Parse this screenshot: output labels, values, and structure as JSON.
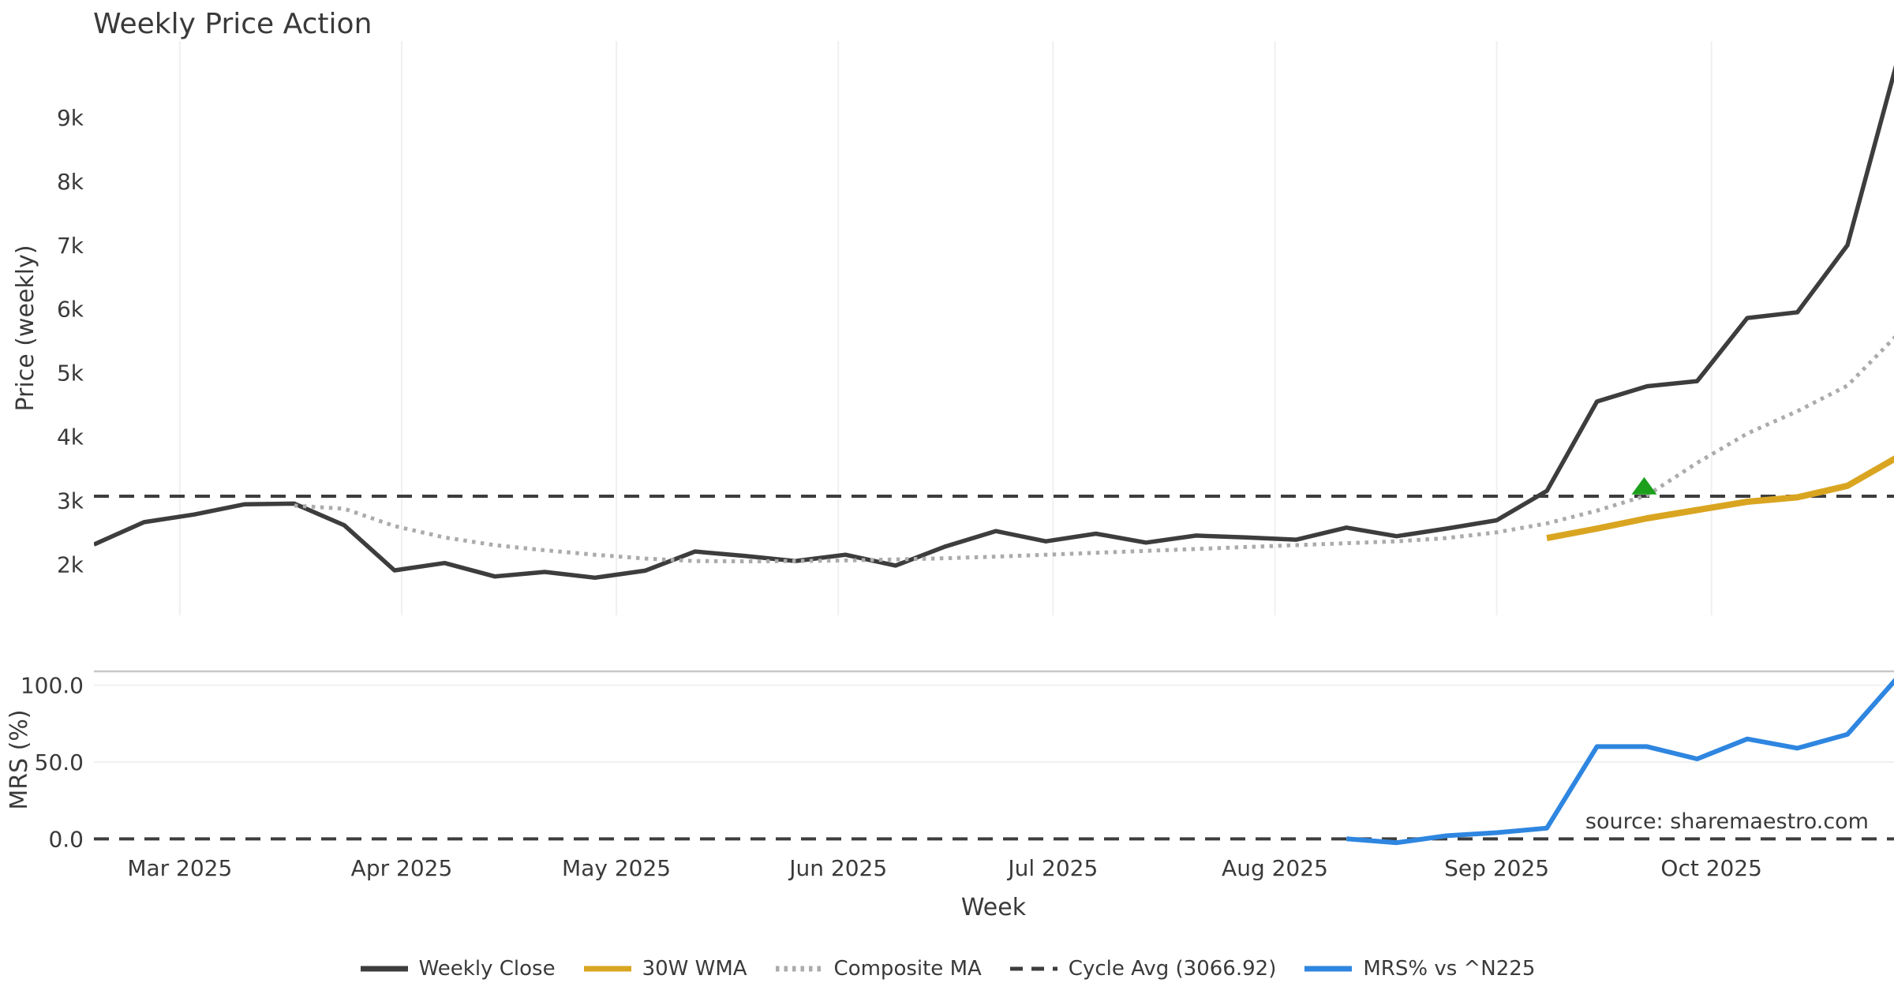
{
  "title": "Weekly Price Action",
  "source_note": "source: sharemaestro.com",
  "legend": {
    "items": [
      {
        "label": "Weekly Close",
        "color": "#3d3d3d",
        "style": "solid"
      },
      {
        "label": "30W WMA",
        "color": "#d9a521",
        "style": "solid"
      },
      {
        "label": "Composite MA",
        "color": "#ababab",
        "style": "dotted"
      },
      {
        "label": "Cycle Avg (3066.92)",
        "color": "#3d3d3d",
        "style": "dashed"
      },
      {
        "label": "MRS% vs ^N225",
        "color": "#2e86e0",
        "style": "solid"
      }
    ]
  },
  "chart_data": [
    {
      "type": "line",
      "panel": "price",
      "title": "Weekly Price Action",
      "ylabel": "Price (weekly)",
      "ylim": [
        1200,
        10200
      ],
      "xlim_days": [
        0,
        251.5
      ],
      "grid": "vertical-months",
      "x_ticks": [
        {
          "label": "Mar 2025",
          "day": 12
        },
        {
          "label": "Apr 2025",
          "day": 43
        },
        {
          "label": "May 2025",
          "day": 73
        },
        {
          "label": "Jun 2025",
          "day": 104
        },
        {
          "label": "Jul 2025",
          "day": 134
        },
        {
          "label": "Aug 2025",
          "day": 165
        },
        {
          "label": "Sep 2025",
          "day": 196
        },
        {
          "label": "Oct 2025",
          "day": 226
        }
      ],
      "y_ticks": [
        {
          "label": "9k",
          "value": 9000
        },
        {
          "label": "8k",
          "value": 8000
        },
        {
          "label": "7k",
          "value": 7000
        },
        {
          "label": "6k",
          "value": 6000
        },
        {
          "label": "5k",
          "value": 5000
        },
        {
          "label": "4k",
          "value": 4000
        },
        {
          "label": "3k",
          "value": 3000
        },
        {
          "label": "2k",
          "value": 2000
        }
      ],
      "series": [
        {
          "name": "Weekly Close",
          "color": "#3d3d3d",
          "style": "solid",
          "start_day": 0,
          "step_days": 7,
          "values": [
            2310,
            2660,
            2780,
            2940,
            2950,
            2610,
            1905,
            2020,
            1810,
            1880,
            1790,
            1900,
            2200,
            2130,
            2050,
            2150,
            1980,
            2280,
            2520,
            2360,
            2480,
            2340,
            2450,
            2420,
            2385,
            2575,
            2440,
            2560,
            2690,
            3150,
            4550,
            4790,
            4870,
            5860,
            5950,
            7000,
            9900
          ]
        },
        {
          "name": "Composite MA",
          "color": "#ababab",
          "style": "dotted",
          "start_day": 28,
          "step_days": 7,
          "values": [
            2920,
            2870,
            2600,
            2420,
            2300,
            2220,
            2150,
            2090,
            2050,
            2045,
            2050,
            2060,
            2075,
            2095,
            2120,
            2150,
            2180,
            2210,
            2240,
            2270,
            2300,
            2330,
            2360,
            2410,
            2500,
            2640,
            2840,
            3080,
            3590,
            4050,
            4400,
            4800,
            5600
          ]
        },
        {
          "name": "30W WMA",
          "color": "#d9a521",
          "style": "solid",
          "start_day": 203,
          "step_days": 7,
          "values": [
            2410,
            2560,
            2720,
            2850,
            2980,
            3050,
            3230,
            3680
          ]
        }
      ],
      "hlines": [
        {
          "name": "Cycle Avg",
          "value": 3066.92,
          "color": "#3d3d3d",
          "style": "dashed"
        }
      ],
      "markers": [
        {
          "shape": "triangle-up",
          "color": "#1ca01c",
          "day": 216.6,
          "value": 3230
        }
      ]
    },
    {
      "type": "line",
      "panel": "mrs",
      "ylabel": "MRS (%)",
      "xlabel": "Week",
      "ylim": [
        -6,
        109
      ],
      "grid_values": [
        50,
        100
      ],
      "y_ticks": [
        {
          "label": "100.0",
          "value": 100
        },
        {
          "label": "50.0",
          "value": 50
        },
        {
          "label": "0.0",
          "value": 0
        }
      ],
      "series": [
        {
          "name": "MRS% vs ^N225",
          "color": "#2e86e0",
          "style": "solid",
          "start_day": 175,
          "step_days": 7,
          "values": [
            0,
            -2.5,
            2,
            4,
            7,
            60,
            60,
            52,
            65,
            59,
            68,
            105
          ]
        }
      ],
      "hlines": [
        {
          "name": "zero",
          "value": 0,
          "color": "#3d3d3d",
          "style": "dashed"
        }
      ]
    }
  ]
}
